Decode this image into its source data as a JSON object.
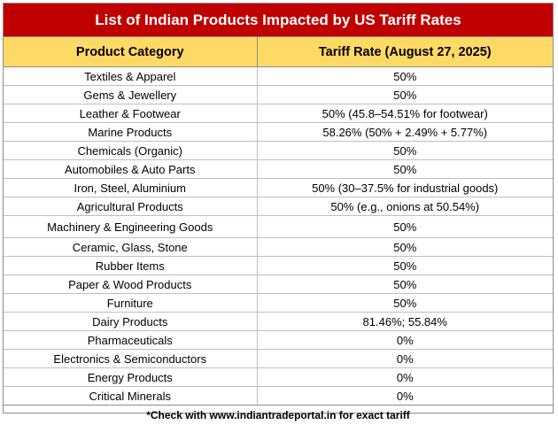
{
  "title": "List of Indian Products Impacted by US Tariff Rates",
  "headers": {
    "category": "Product Category",
    "rate": "Tariff Rate (August 27, 2025)"
  },
  "rows": [
    {
      "category": "Textiles & Apparel",
      "rate": "50%"
    },
    {
      "category": "Gems & Jewellery",
      "rate": "50%"
    },
    {
      "category": "Leather & Footwear",
      "rate": "50% (45.8–54.51% for footwear)"
    },
    {
      "category": "Marine Products",
      "rate": "58.26% (50% + 2.49% + 5.77%)"
    },
    {
      "category": "Chemicals (Organic)",
      "rate": "50%"
    },
    {
      "category": "Automobiles & Auto Parts",
      "rate": "50%"
    },
    {
      "category": "Iron, Steel, Aluminium",
      "rate": "50% (30–37.5% for industrial goods)"
    },
    {
      "category": "Agricultural Products",
      "rate": "50% (e.g., onions at 50.54%)"
    },
    {
      "category": "Machinery & Engineering Goods",
      "rate": "50%"
    },
    {
      "category": "Ceramic, Glass, Stone",
      "rate": "50%"
    },
    {
      "category": "Rubber Items",
      "rate": "50%"
    },
    {
      "category": "Paper & Wood Products",
      "rate": "50%"
    },
    {
      "category": "Furniture",
      "rate": "50%"
    },
    {
      "category": "Dairy Products",
      "rate": "81.46%; 55.84%"
    },
    {
      "category": "Pharmaceuticals",
      "rate": "0%"
    },
    {
      "category": "Electronics & Semiconductors",
      "rate": "0%"
    },
    {
      "category": "Energy Products",
      "rate": "0%"
    },
    {
      "category": "Critical Minerals",
      "rate": "0%"
    }
  ],
  "footnote": "*Check with www.indiantradeportal.in for exact tariff",
  "colors": {
    "title_background": "#c00000",
    "header_background": "#ffd966"
  }
}
